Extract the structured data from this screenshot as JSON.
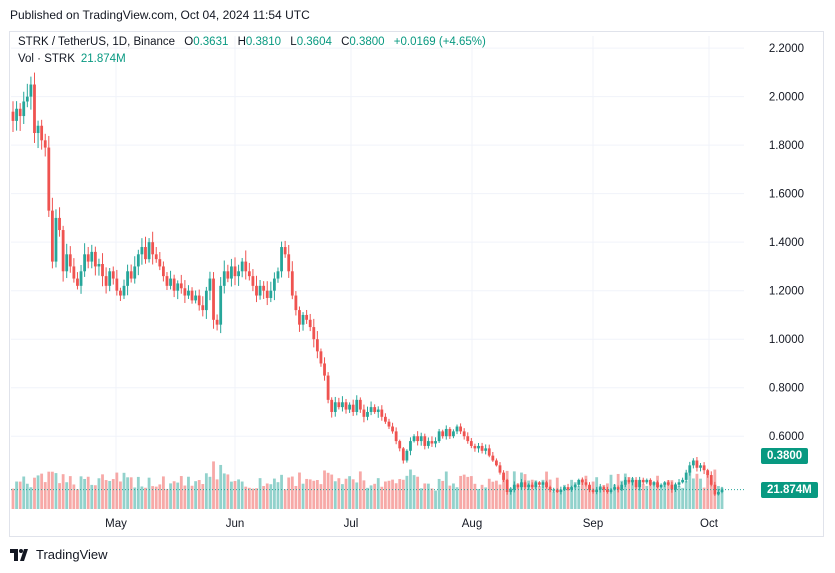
{
  "header": {
    "published_text": "Published on TradingView.com, Oct 04, 2024 11:54 UTC"
  },
  "legend": {
    "symbol": "STRK / TetherUS, 1D, Binance",
    "open_label": "O",
    "open": "0.3631",
    "high_label": "H",
    "high": "0.3810",
    "low_label": "L",
    "low": "0.3604",
    "close_label": "C",
    "close": "0.3800",
    "change": "+0.0169 (+4.65%)"
  },
  "volume_legend": {
    "label": "Vol · STRK",
    "value": "21.874M"
  },
  "badges": {
    "last_price": "0.3800",
    "last_volume": "21.874M"
  },
  "footer": {
    "brand": "TradingView"
  },
  "colors": {
    "up": "#26a69a",
    "down": "#ef5350",
    "badge": "#089981",
    "grid": "#f0f3fa"
  },
  "chart_data": {
    "type": "candlestick",
    "y_ticks": [
      "2.2000",
      "2.0000",
      "1.8000",
      "1.6000",
      "1.4000",
      "1.2000",
      "1.0000",
      "0.8000",
      "0.6000"
    ],
    "ylim": [
      0.3,
      2.25
    ],
    "x_ticks": [
      "May",
      "Jun",
      "Jul",
      "Aug",
      "Sep",
      "Oct"
    ],
    "last_price": 0.38,
    "series": [
      {
        "name": "STRK / TetherUS",
        "close": [
          1.9,
          1.95,
          1.92,
          1.98,
          2.0,
          2.05,
          1.85,
          1.88,
          1.82,
          1.79,
          1.53,
          1.32,
          1.5,
          1.45,
          1.28,
          1.35,
          1.3,
          1.25,
          1.22,
          1.28,
          1.35,
          1.32,
          1.36,
          1.3,
          1.31,
          1.26,
          1.22,
          1.28,
          1.25,
          1.2,
          1.18,
          1.22,
          1.28,
          1.25,
          1.3,
          1.35,
          1.38,
          1.33,
          1.4,
          1.35,
          1.33,
          1.3,
          1.26,
          1.22,
          1.25,
          1.2,
          1.23,
          1.21,
          1.18,
          1.2,
          1.16,
          1.18,
          1.14,
          1.12,
          1.2,
          1.25,
          1.08,
          1.06,
          1.22,
          1.28,
          1.25,
          1.3,
          1.26,
          1.28,
          1.32,
          1.28,
          1.26,
          1.22,
          1.18,
          1.22,
          1.2,
          1.17,
          1.2,
          1.25,
          1.28,
          1.38,
          1.35,
          1.28,
          1.18,
          1.12,
          1.06,
          1.1,
          1.08,
          1.05,
          1.0,
          0.95,
          0.9,
          0.85,
          0.75,
          0.7,
          0.74,
          0.72,
          0.74,
          0.71,
          0.73,
          0.7,
          0.75,
          0.71,
          0.68,
          0.7,
          0.72,
          0.7,
          0.71,
          0.68,
          0.66,
          0.64,
          0.62,
          0.58,
          0.55,
          0.5,
          0.54,
          0.58,
          0.6,
          0.58,
          0.6,
          0.56,
          0.58,
          0.57,
          0.58,
          0.62,
          0.6,
          0.63,
          0.6,
          0.62,
          0.64,
          0.62,
          0.6,
          0.58,
          0.56,
          0.55,
          0.56,
          0.54,
          0.55,
          0.52,
          0.5,
          0.48,
          0.45,
          0.42,
          0.37,
          0.38,
          0.4,
          0.39,
          0.41,
          0.39,
          0.4,
          0.39,
          0.41,
          0.4,
          0.41,
          0.39,
          0.38,
          0.38,
          0.37,
          0.38,
          0.39,
          0.38,
          0.39,
          0.4,
          0.42,
          0.41,
          0.4,
          0.38,
          0.37,
          0.38,
          0.39,
          0.38,
          0.37,
          0.38,
          0.39,
          0.38,
          0.4,
          0.42,
          0.41,
          0.42,
          0.39,
          0.42,
          0.41,
          0.42,
          0.4,
          0.41,
          0.39,
          0.4,
          0.41,
          0.4,
          0.38,
          0.4,
          0.41,
          0.42,
          0.45,
          0.48,
          0.5,
          0.47,
          0.48,
          0.46,
          0.44,
          0.4,
          0.36,
          0.37,
          0.38
        ]
      }
    ],
    "volume_unit": "M",
    "last_volume": 21.874
  }
}
